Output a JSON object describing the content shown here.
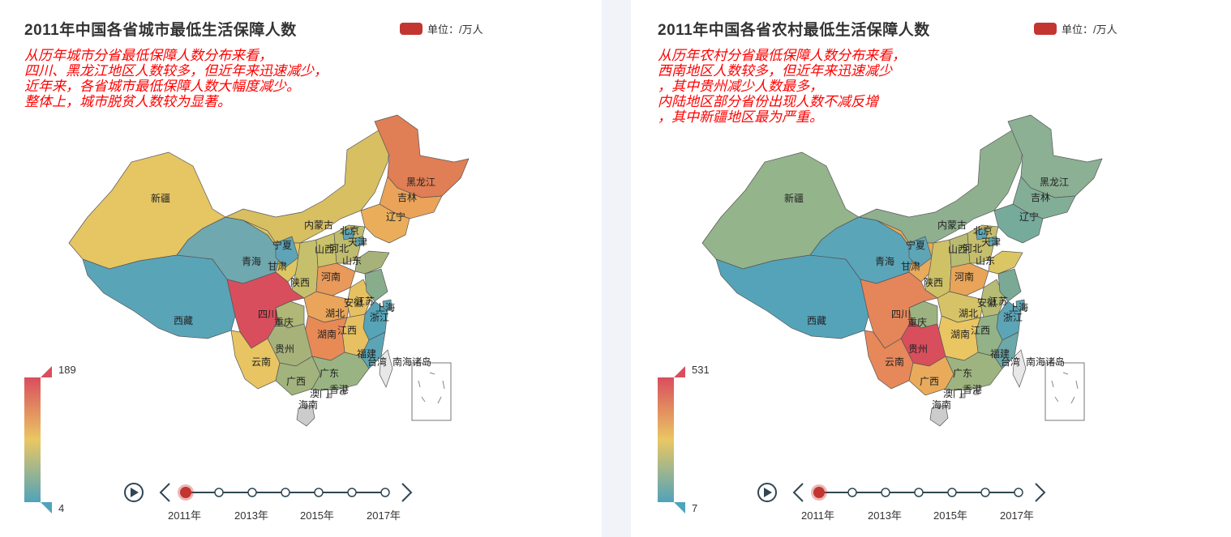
{
  "colors": {
    "high": "#d94e5d",
    "mid": "#eac763",
    "low": "#50a3ba",
    "accent": "#c23531",
    "subtitle": "#ff0000",
    "timeline": "#304654"
  },
  "years": [
    "2011年",
    "2013年",
    "2015年",
    "2017年"
  ],
  "timeline_points": 7,
  "timeline_current": 0,
  "panels": [
    {
      "title": "2011年中国各省城市最低生活保障人数",
      "legend": "单位：/万人",
      "subtitle": "从历年城市分省最低保障人数分布来看，\n四川、黑龙江地区人数较多，但近年来迅速减少，\n近年来，各省城市最低保障人数大幅度减少。\n整体上，城市脱贫人数较为显著。",
      "visual_max": "189",
      "visual_min": "4",
      "regions": {
        "新疆": "#e6c563",
        "西藏": "#5aa4b8",
        "青海": "#6fa8ae",
        "内蒙古": "#d8bf62",
        "黑龙江": "#e07e55",
        "吉林": "#eaa359",
        "辽宁": "#eaae5b",
        "四川": "#d94e5d",
        "甘肃": "#dec763",
        "宁夏": "#5ea4b6",
        "陕西": "#c6bf6c",
        "山西": "#cbc36b",
        "河北": "#c0bc6e",
        "山东": "#a7b27a",
        "河南": "#e9995a",
        "湖北": "#eaa55a",
        "湖南": "#e88a56",
        "江西": "#e7c061",
        "安徽": "#e5c162",
        "江苏": "#87ad8c",
        "浙江": "#56a4b8",
        "福建": "#5ca5b6",
        "广东": "#99b482",
        "广西": "#a3b37d",
        "云南": "#e8c562",
        "贵州": "#a7b27b",
        "重庆": "#b0b777"
      },
      "labels": {
        "新疆": "新疆",
        "西藏": "西藏",
        "青海": "青海",
        "内蒙古": "内蒙古",
        "黑龙江": "黑龙江",
        "吉林": "吉林",
        "辽宁": "辽宁",
        "四川": "四川",
        "甘肃": "甘肃",
        "宁夏": "宁夏",
        "陕西": "陕西",
        "山西": "山西",
        "河北": "河北",
        "北京": "北京",
        "天津": "天津",
        "山东": "山东",
        "河南": "河南",
        "湖北": "湖北",
        "湖南": "湖南",
        "江西": "江西",
        "安徽": "安徽",
        "江苏": "江苏",
        "上海": "上海",
        "浙江": "浙江",
        "福建": "福建",
        "台湾": "台湾",
        "南海诸岛": "南海诸岛",
        "广东": "广东",
        "澳门": "澳门",
        "香港": "香港",
        "广西": "广西",
        "海南": "海南",
        "云南": "云南",
        "贵州": "贵州",
        "重庆": "重庆"
      }
    },
    {
      "title": "2011年中国各省农村最低生活保障人数",
      "legend": "单位：/万人",
      "subtitle": "从历年农村分省最低保障人数分布来看，\n西南地区人数较多，但近年来迅速减少\n，其中贵州减少人数最多，\n内陆地区部分省份出现人数不减反增\n，其中新疆地区最为严重。",
      "visual_max": "531",
      "visual_min": "7",
      "regions": {
        "新疆": "#94b48b",
        "西藏": "#55a3b9",
        "青海": "#5ba5b8",
        "内蒙古": "#8eb08f",
        "黑龙江": "#8bb094",
        "吉林": "#82ae97",
        "辽宁": "#76ab9c",
        "四川": "#e4865a",
        "甘肃": "#e9aa5a",
        "宁夏": "#5ea5b6",
        "陕西": "#cfc166",
        "山西": "#b9bb73",
        "河北": "#c5be6c",
        "山东": "#dbc664",
        "河南": "#e8a459",
        "湖北": "#d6c367",
        "湖南": "#e9c662",
        "江西": "#93b288",
        "安徽": "#b6bb75",
        "江苏": "#7aa996",
        "浙江": "#5ca5b6",
        "福建": "#6da8aa",
        "广东": "#9eb480",
        "广西": "#e9ab5b",
        "云南": "#e6885a",
        "贵州": "#d84e5d",
        "重庆": "#9cb381"
      },
      "labels": {
        "新疆": "新疆",
        "西藏": "西藏",
        "青海": "青海",
        "内蒙古": "内蒙古",
        "黑龙江": "黑龙江",
        "吉林": "吉林",
        "辽宁": "辽宁",
        "四川": "四川",
        "甘肃": "甘肃",
        "宁夏": "宁夏",
        "陕西": "陕西",
        "山西": "山西",
        "河北": "河北",
        "北京": "北京",
        "天津": "天津",
        "山东": "山东",
        "河南": "河南",
        "湖北": "湖北",
        "湖南": "湖南",
        "江西": "江西",
        "安徽": "安徽",
        "江苏": "江苏",
        "上海": "上海",
        "浙江": "浙江",
        "福建": "福建",
        "台湾": "台湾",
        "南海诸岛": "南海诸岛",
        "广东": "广东",
        "澳门": "澳门",
        "香港": "香港",
        "广西": "广西",
        "海南": "海南",
        "云南": "云南",
        "贵州": "贵州",
        "重庆": "重庆"
      }
    }
  ],
  "chart_data": [
    {
      "type": "map",
      "title": "2011年中国各省城市最低生活保障人数",
      "unit": "单位：/万人",
      "range": [
        4,
        189
      ],
      "timeline": [
        "2011年",
        "2013年",
        "2015年",
        "2017年"
      ]
    },
    {
      "type": "map",
      "title": "2011年中国各省农村最低生活保障人数",
      "unit": "单位：/万人",
      "range": [
        7,
        531
      ],
      "timeline": [
        "2011年",
        "2013年",
        "2015年",
        "2017年"
      ]
    }
  ]
}
